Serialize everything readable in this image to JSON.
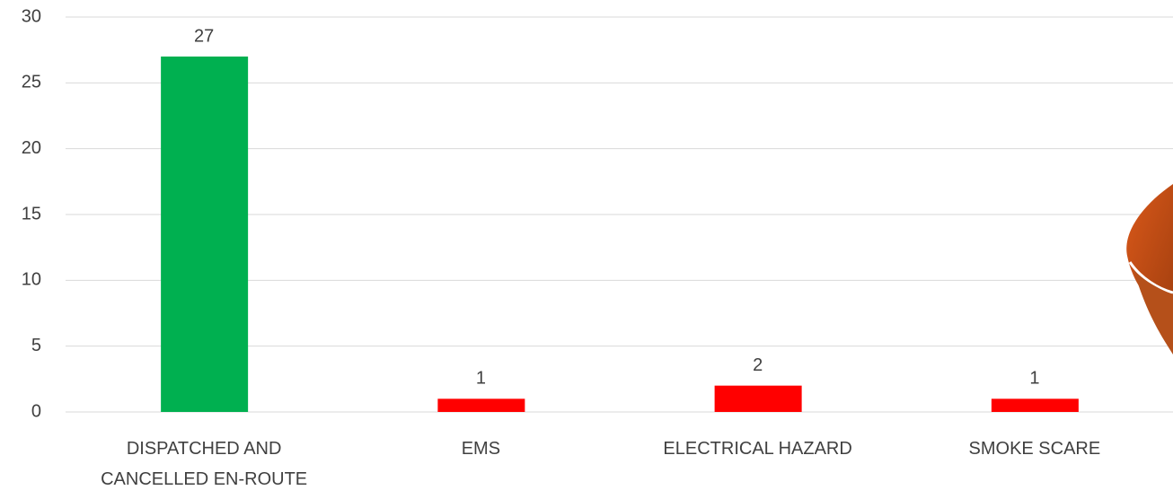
{
  "chart_data": {
    "type": "bar",
    "categories": [
      "DISPATCHED AND CANCELLED EN-ROUTE",
      "EMS",
      "ELECTRICAL HAZARD",
      "SMOKE SCARE"
    ],
    "values": [
      27,
      1,
      2,
      1
    ],
    "colors": [
      "#00b050",
      "#ff0000",
      "#ff0000",
      "#ff0000"
    ],
    "ylim": [
      0,
      30
    ],
    "yticks": [
      0,
      5,
      10,
      15,
      20,
      25,
      30
    ],
    "grid": true
  }
}
